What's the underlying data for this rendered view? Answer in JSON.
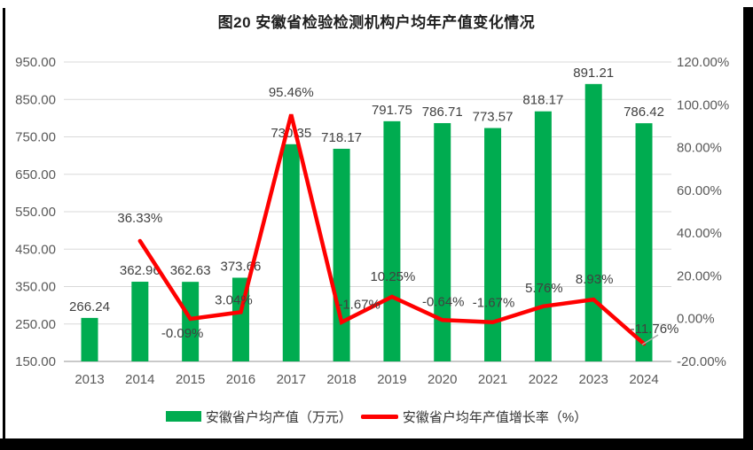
{
  "page": {
    "title": "图20 安徽省检验检测机构户均年产值变化情况"
  },
  "chart_data": {
    "type": "combo-bar-line",
    "title": "图20 安徽省检验检测机构户均年产值变化情况",
    "categories": [
      "2013",
      "2014",
      "2015",
      "2016",
      "2017",
      "2018",
      "2019",
      "2020",
      "2021",
      "2022",
      "2023",
      "2024"
    ],
    "series": [
      {
        "name": "安徽省户均产值（万元）",
        "type": "bar",
        "axis": "left",
        "color": "#00AC50",
        "values": [
          266.24,
          362.96,
          362.63,
          373.66,
          730.35,
          718.17,
          791.75,
          786.71,
          773.57,
          818.17,
          891.21,
          786.42
        ],
        "labels": [
          "266.24",
          "362.96",
          "362.63",
          "373.66",
          "730.35",
          "718.17",
          "791.75",
          "786.71",
          "773.57",
          "818.17",
          "891.21",
          "786.42"
        ]
      },
      {
        "name": "安徽省户均年产值增长率（%）",
        "type": "line",
        "axis": "right",
        "color": "#FF0000",
        "values": [
          null,
          36.33,
          -0.09,
          3.04,
          95.46,
          -1.67,
          10.25,
          -0.64,
          -1.67,
          5.76,
          8.93,
          -11.76
        ],
        "labels": [
          null,
          "36.33%",
          "-0.09%",
          "3.04%",
          "95.46%",
          "-1.67%",
          "10.25%",
          "-0.64%",
          "-1.67%",
          "5.76%",
          "8.93%",
          "-11.76%"
        ]
      }
    ],
    "left_axis": {
      "min": 150,
      "max": 950,
      "step": 100,
      "tick_values": [
        950,
        850,
        750,
        650,
        550,
        450,
        350,
        250,
        150
      ],
      "tick_labels": [
        "950.00",
        "850.00",
        "750.00",
        "650.00",
        "550.00",
        "450.00",
        "350.00",
        "250.00",
        "150.00"
      ]
    },
    "right_axis": {
      "min": -20,
      "max": 120,
      "step": 20,
      "tick_values": [
        120,
        100,
        80,
        60,
        40,
        20,
        0,
        -20
      ],
      "tick_labels": [
        "120.00%",
        "100.00%",
        "80.00%",
        "60.00%",
        "40.00%",
        "20.00%",
        "0.00%",
        "-20.00%"
      ]
    },
    "grid": true,
    "legend_position": "bottom"
  },
  "legend": {
    "items": [
      {
        "label": "安徽省户均产值（万元）",
        "swatch": "bar",
        "color": "#00AC50"
      },
      {
        "label": "安徽省户均年产值增长率（%）",
        "swatch": "line",
        "color": "#FF0000"
      }
    ]
  },
  "colors": {
    "bar": "#00AC50",
    "line": "#FF0000",
    "grid": "#D9D9D9",
    "axis_line": "#C9C9C9",
    "data_label": "#404040",
    "axis_label": "#595959",
    "leader": "#A6A6A6",
    "edge": "#000000"
  }
}
